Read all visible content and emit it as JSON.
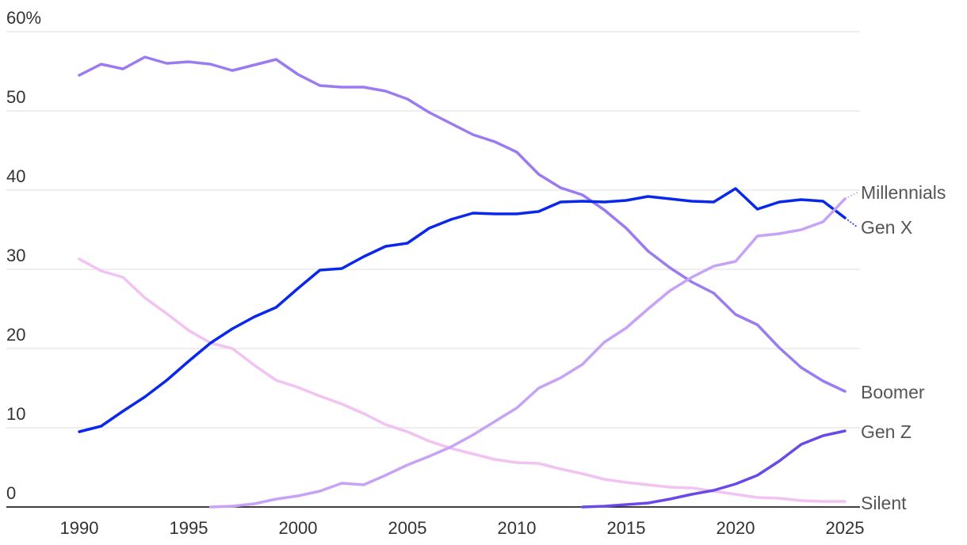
{
  "chart_data": {
    "type": "line",
    "ylim": [
      0,
      60
    ],
    "xlim": [
      1990,
      2025
    ],
    "yticks": [
      {
        "value": 0,
        "label": "0"
      },
      {
        "value": 10,
        "label": "10"
      },
      {
        "value": 20,
        "label": "20"
      },
      {
        "value": 30,
        "label": "30"
      },
      {
        "value": 40,
        "label": "40"
      },
      {
        "value": 50,
        "label": "50"
      },
      {
        "value": 60,
        "label": "60%"
      }
    ],
    "xticks": [
      {
        "value": 1990,
        "label": "1990"
      },
      {
        "value": 1995,
        "label": "1995"
      },
      {
        "value": 2000,
        "label": "2000"
      },
      {
        "value": 2005,
        "label": "2005"
      },
      {
        "value": 2010,
        "label": "2010"
      },
      {
        "value": 2015,
        "label": "2015"
      },
      {
        "value": 2020,
        "label": "2020"
      },
      {
        "value": 2025,
        "label": "2025"
      }
    ],
    "grid": true,
    "series": [
      {
        "name": "Silent",
        "color": "#f2c2f2",
        "x": [
          1990,
          1991,
          1992,
          1993,
          1994,
          1995,
          1996,
          1997,
          1998,
          1999,
          2000,
          2001,
          2002,
          2003,
          2004,
          2005,
          2006,
          2007,
          2008,
          2009,
          2010,
          2011,
          2012,
          2013,
          2014,
          2015,
          2016,
          2017,
          2018,
          2019,
          2020,
          2021,
          2022,
          2023,
          2024,
          2025
        ],
        "values": [
          31.3,
          29.8,
          29.0,
          26.4,
          24.4,
          22.3,
          20.7,
          20.0,
          17.9,
          16.0,
          15.1,
          14.0,
          13.0,
          11.8,
          10.4,
          9.5,
          8.3,
          7.4,
          6.7,
          6.0,
          5.6,
          5.5,
          4.8,
          4.2,
          3.5,
          3.1,
          2.8,
          2.5,
          2.4,
          2.0,
          1.6,
          1.2,
          1.1,
          0.8,
          0.7,
          0.7
        ]
      },
      {
        "name": "Boomer",
        "color": "#9b7bf0",
        "x": [
          1990,
          1991,
          1992,
          1993,
          1994,
          1995,
          1996,
          1997,
          1998,
          1999,
          2000,
          2001,
          2002,
          2003,
          2004,
          2005,
          2006,
          2007,
          2008,
          2009,
          2010,
          2011,
          2012,
          2013,
          2014,
          2015,
          2016,
          2017,
          2018,
          2019,
          2020,
          2021,
          2022,
          2023,
          2024,
          2025
        ],
        "values": [
          54.5,
          55.9,
          55.3,
          56.8,
          56.0,
          56.2,
          55.9,
          55.1,
          55.8,
          56.5,
          54.6,
          53.2,
          53.0,
          53.0,
          52.5,
          51.5,
          49.8,
          48.4,
          47.0,
          46.1,
          44.8,
          42.0,
          40.3,
          39.4,
          37.5,
          35.2,
          32.3,
          30.2,
          28.4,
          27.0,
          24.3,
          23.0,
          20.1,
          17.6,
          15.9,
          14.6
        ]
      },
      {
        "name": "Gen X",
        "color": "#0a28ea",
        "x": [
          1990,
          1991,
          1992,
          1993,
          1994,
          1995,
          1996,
          1997,
          1998,
          1999,
          2000,
          2001,
          2002,
          2003,
          2004,
          2005,
          2006,
          2007,
          2008,
          2009,
          2010,
          2011,
          2012,
          2013,
          2014,
          2015,
          2016,
          2017,
          2018,
          2019,
          2020,
          2021,
          2022,
          2023,
          2024,
          2025
        ],
        "values": [
          9.5,
          10.2,
          12.1,
          13.9,
          16.0,
          18.4,
          20.7,
          22.5,
          24.0,
          25.2,
          27.6,
          29.9,
          30.1,
          31.6,
          32.9,
          33.3,
          35.2,
          36.3,
          37.1,
          37.0,
          37.0,
          37.3,
          38.5,
          38.6,
          38.5,
          38.7,
          39.2,
          38.9,
          38.6,
          38.5,
          40.2,
          37.6,
          38.5,
          38.8,
          38.6,
          36.5
        ]
      },
      {
        "name": "Millennials",
        "color": "#c7a3f5",
        "x": [
          1996,
          1997,
          1998,
          1999,
          2000,
          2001,
          2002,
          2003,
          2004,
          2005,
          2006,
          2007,
          2008,
          2009,
          2010,
          2011,
          2012,
          2013,
          2014,
          2015,
          2016,
          2017,
          2018,
          2019,
          2020,
          2021,
          2022,
          2023,
          2024,
          2025
        ],
        "values": [
          0.0,
          0.1,
          0.4,
          1.0,
          1.4,
          2.0,
          3.0,
          2.8,
          4.0,
          5.3,
          6.4,
          7.6,
          9.1,
          10.8,
          12.5,
          15.0,
          16.3,
          18.0,
          20.8,
          22.6,
          25.0,
          27.3,
          29.0,
          30.4,
          31.0,
          34.2,
          34.5,
          35.0,
          36.0,
          38.9
        ]
      },
      {
        "name": "Gen Z",
        "color": "#6a4ae6",
        "x": [
          2013,
          2014,
          2015,
          2016,
          2017,
          2018,
          2019,
          2020,
          2021,
          2022,
          2023,
          2024,
          2025
        ],
        "values": [
          0.0,
          0.1,
          0.3,
          0.5,
          1.0,
          1.6,
          2.1,
          2.9,
          4.0,
          5.8,
          7.9,
          9.0,
          9.6
        ]
      }
    ]
  },
  "labels": {
    "millennials": "Millennials",
    "gen_x": "Gen X",
    "boomer": "Boomer",
    "gen_z": "Gen Z",
    "silent": "Silent"
  }
}
